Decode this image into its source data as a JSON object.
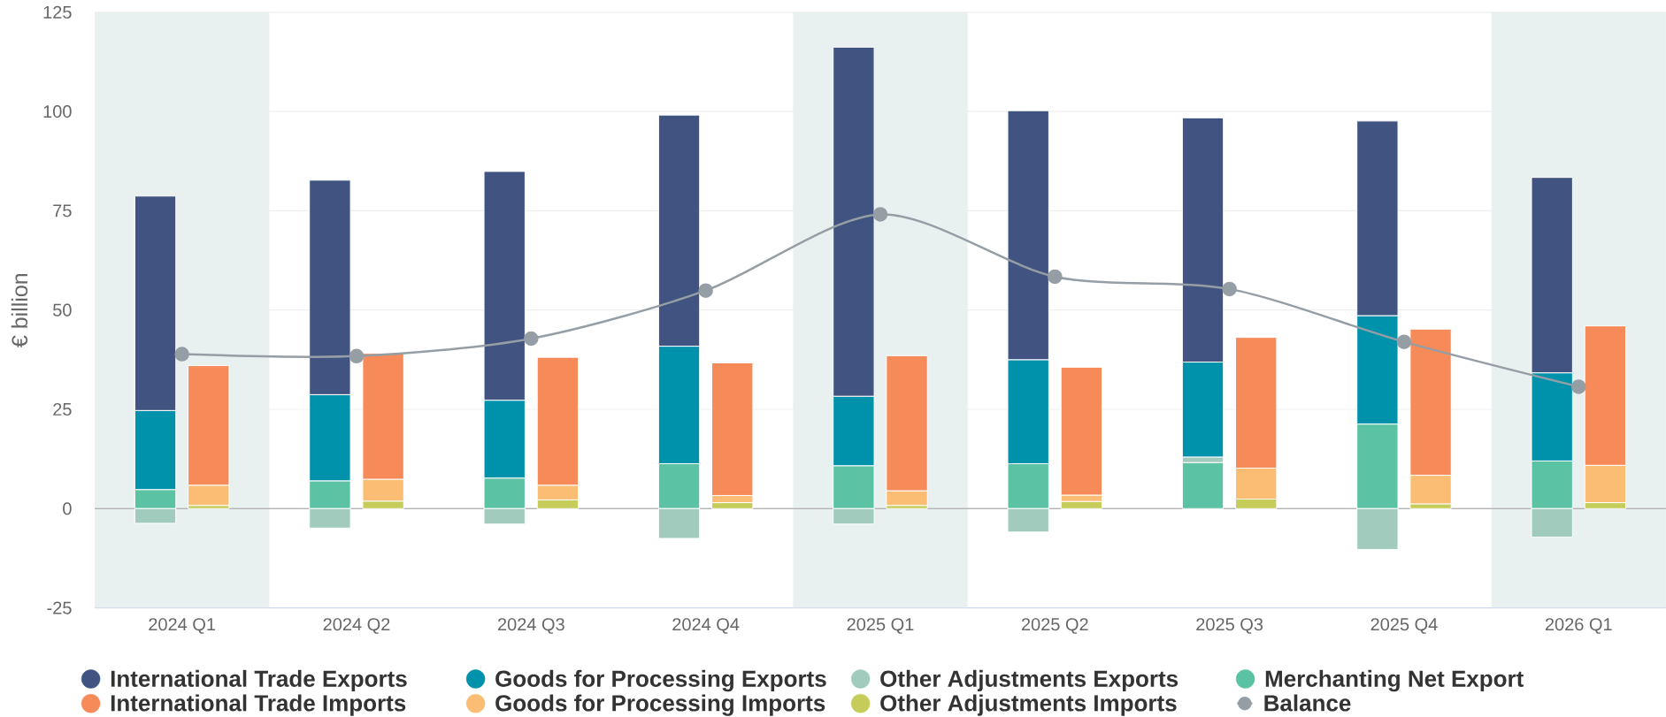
{
  "chart_data": [
    {
      "type": "bar",
      "ylabel": "€ billion",
      "categories": [
        "2024 Q1",
        "2024 Q2",
        "2024 Q3",
        "2024 Q4",
        "2025 Q1",
        "2025 Q2",
        "2025 Q3",
        "2025 Q4",
        "2026 Q1"
      ],
      "stacked": true,
      "ylim": [
        -25,
        125
      ],
      "yticks": [
        -25,
        0,
        25,
        50,
        75,
        100,
        125
      ],
      "grid": "y",
      "legend": "bottom",
      "bands": [
        {
          "axis": "x",
          "from": "2024 Q1",
          "to": "2024 Q1",
          "color": "#e9f1f0"
        },
        {
          "axis": "x",
          "from": "2025 Q1",
          "to": "2025 Q1",
          "color": "#e9f1f0"
        },
        {
          "axis": "x",
          "from": "2026 Q1",
          "to": "2026 Q1",
          "color": "#e9f1f0"
        }
      ],
      "ref_lines": [
        {
          "axis": "y",
          "value": 0,
          "color": "#b3b3b3"
        }
      ],
      "series": [
        {
          "name": "Merchanting Net Export",
          "color": "#5bc2a3",
          "values": [
            4.8,
            7.0,
            7.7,
            11.3,
            10.8,
            11.3,
            11.6,
            21.3,
            12.0
          ]
        },
        {
          "name": "Other Adjustments Exports",
          "color": "#a0cbbd",
          "values": [
            -3.7,
            -4.9,
            -3.9,
            -7.5,
            -3.9,
            -5.9,
            1.4,
            -10.3,
            -7.2
          ]
        },
        {
          "name": "Goods for Processing Exports",
          "color": "#0091ab",
          "values": [
            19.9,
            21.7,
            19.6,
            29.6,
            17.5,
            26.2,
            23.9,
            27.3,
            22.2
          ]
        },
        {
          "name": "International Trade Exports",
          "color": "#415380",
          "values": [
            54.0,
            54.0,
            57.6,
            58.2,
            87.9,
            62.7,
            61.5,
            49.0,
            49.2
          ]
        }
      ]
    },
    {
      "type": "bar",
      "categories": [
        null,
        null,
        null,
        null,
        null,
        null,
        null,
        null,
        null
      ],
      "stacked": true,
      "ylim": [
        -25,
        125
      ],
      "tick_labels": false,
      "legend": "bottom",
      "series": [
        {
          "name": "Other Adjustments Imports",
          "color": "#c5cc5a",
          "values": [
            0.8,
            1.9,
            2.2,
            1.5,
            0.8,
            1.8,
            2.4,
            1.2,
            1.5
          ]
        },
        {
          "name": "Goods for Processing Imports",
          "color": "#fbbd73",
          "values": [
            5.1,
            5.5,
            3.7,
            1.8,
            3.7,
            1.6,
            7.8,
            7.2,
            9.4
          ]
        },
        {
          "name": "International Trade Imports",
          "color": "#f68a58",
          "values": [
            30.1,
            31.7,
            32.2,
            33.4,
            34.0,
            32.2,
            32.9,
            36.8,
            35.1
          ]
        },
        {
          "name": "Balance",
          "type": "line",
          "color": "#969ea5",
          "marker": "circle",
          "values": [
            38.9,
            38.4,
            42.8,
            54.9,
            74.1,
            58.4,
            55.3,
            42.0,
            30.7
          ]
        }
      ]
    }
  ]
}
